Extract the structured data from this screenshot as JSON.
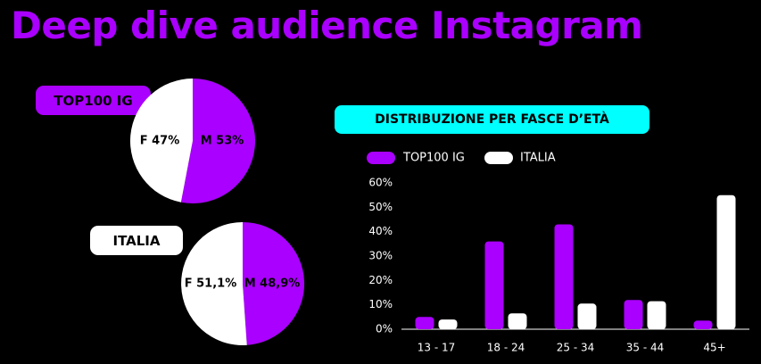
{
  "title": "Deep dive audience Instagram",
  "colors": {
    "purple": "#aa00ff",
    "white": "#ffffff",
    "cyan": "#00ffff",
    "background": "#000000"
  },
  "chart_data": [
    {
      "type": "pie",
      "title": "TOP100 IG",
      "slices": [
        {
          "label": "M 53%",
          "value": 53,
          "color": "#aa00ff"
        },
        {
          "label": "F 47%",
          "value": 47,
          "color": "#ffffff"
        }
      ]
    },
    {
      "type": "pie",
      "title": "ITALIA",
      "slices": [
        {
          "label": "M 48,9%",
          "value": 48.9,
          "color": "#aa00ff"
        },
        {
          "label": "F 51,1%",
          "value": 51.1,
          "color": "#ffffff"
        }
      ]
    },
    {
      "type": "bar",
      "title": "DISTRIBUZIONE PER FASCE D’ETÀ",
      "categories": [
        "13 - 17",
        "18 - 24",
        "25 - 34",
        "35 - 44",
        "45+"
      ],
      "series": [
        {
          "name": "TOP100 IG",
          "color": "#aa00ff",
          "values": [
            5,
            36,
            43,
            12,
            3.5
          ]
        },
        {
          "name": "ITALIA",
          "color": "#ffffff",
          "values": [
            4,
            6.5,
            10.5,
            11.5,
            55
          ]
        }
      ],
      "ylim": [
        0,
        60
      ],
      "yticks": [
        "0%",
        "10%",
        "20%",
        "30%",
        "40%",
        "50%",
        "60%"
      ],
      "grid": false,
      "legend": "top-left"
    }
  ]
}
